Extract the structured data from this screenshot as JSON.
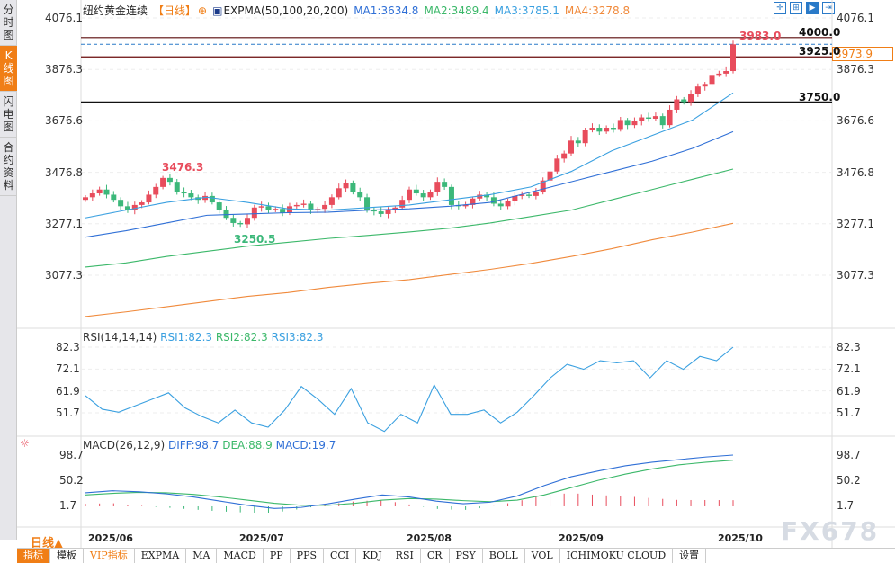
{
  "sidebar": {
    "tabs": [
      "分时图",
      "K线图",
      "闪电图",
      "合约资料"
    ],
    "active": 1
  },
  "header": {
    "instrument": "纽约黄金连续",
    "period": "【日线】",
    "indicator": "EXPMA(50,100,20,200)",
    "ma1": "MA1:3634.8",
    "ma2": "MA2:3489.4",
    "ma3": "MA3:3785.1",
    "ma4": "MA4:3278.8"
  },
  "toolbar_icons": [
    "crosshair-icon",
    "fit-range-icon",
    "play-icon",
    "goto-end-icon"
  ],
  "price_axis": [
    "4076.1",
    "3876.3",
    "3676.6",
    "3476.8",
    "3277.1",
    "3077.3"
  ],
  "current_price": "3973.9",
  "hlines": [
    {
      "label": "4000.0",
      "value": 4000,
      "color": "#5a0a0a"
    },
    {
      "label": "3925.0",
      "value": 3925,
      "color": "#6a0a0a"
    },
    {
      "label": "3750.0",
      "value": 3750,
      "color": "#111111"
    }
  ],
  "annotations": {
    "high": "3983.0",
    "peak": "3476.3",
    "low": "3250.5"
  },
  "rsi": {
    "title": "RSI(14,14,14)",
    "rsi1": "RSI1:82.3",
    "rsi2": "RSI2:82.3",
    "rsi3": "RSI3:82.3",
    "axis": [
      "82.3",
      "72.1",
      "61.9",
      "51.7"
    ]
  },
  "macd": {
    "title": "MACD(26,12,9)",
    "diff": "DIFF:98.7",
    "dea": "DEA:88.9",
    "macd": "MACD:19.7",
    "axis": [
      "98.7",
      "50.2",
      "1.7"
    ]
  },
  "period_button": "日线▲",
  "months": [
    "2025/06",
    "2025/07",
    "2025/08",
    "2025/09",
    "2025/10"
  ],
  "watermark": "FX678",
  "bottom_tabs": [
    "指标",
    "模板",
    "VIP指标",
    "EXPMA",
    "MA",
    "MACD",
    "PP",
    "PPS",
    "CCI",
    "KDJ",
    "RSI",
    "CR",
    "PSY",
    "BOLL",
    "VOL",
    "ICHIMOKU CLOUD",
    "设置"
  ],
  "colors": {
    "up": "#e84c5c",
    "down": "#3cb87a",
    "ma1": "#2f6fd6",
    "ma2": "#3cb86a",
    "ma3": "#3aa0e0",
    "ma4": "#f08a3c",
    "accent": "#f07e16"
  },
  "chart_data": {
    "type": "candlestick",
    "closes": [
      3380,
      3395,
      3410,
      3390,
      3370,
      3345,
      3330,
      3350,
      3360,
      3390,
      3420,
      3455,
      3440,
      3400,
      3395,
      3380,
      3370,
      3385,
      3360,
      3330,
      3300,
      3280,
      3275,
      3300,
      3340,
      3345,
      3330,
      3335,
      3320,
      3345,
      3350,
      3355,
      3330,
      3335,
      3350,
      3380,
      3415,
      3435,
      3400,
      3380,
      3330,
      3325,
      3315,
      3330,
      3340,
      3370,
      3410,
      3395,
      3380,
      3400,
      3440,
      3420,
      3350,
      3345,
      3350,
      3375,
      3390,
      3380,
      3355,
      3345,
      3365,
      3385,
      3390,
      3385,
      3400,
      3445,
      3480,
      3530,
      3550,
      3600,
      3590,
      3640,
      3650,
      3635,
      3650,
      3645,
      3680,
      3660,
      3675,
      3690,
      3685,
      3695,
      3660,
      3720,
      3760,
      3750,
      3780,
      3810,
      3820,
      3855,
      3860,
      3870,
      3973.9
    ],
    "expma": {
      "ma3": [
        3300,
        3330,
        3360,
        3380,
        3360,
        3335,
        3330,
        3340,
        3350,
        3370,
        3390,
        3420,
        3480,
        3560,
        3620,
        3680,
        3785.1
      ],
      "ma1": [
        3225,
        3250,
        3280,
        3310,
        3315,
        3320,
        3322,
        3330,
        3335,
        3345,
        3360,
        3400,
        3440,
        3480,
        3520,
        3570,
        3634.8
      ],
      "ma2": [
        3109,
        3125,
        3150,
        3170,
        3190,
        3205,
        3220,
        3232,
        3245,
        3260,
        3280,
        3305,
        3330,
        3370,
        3410,
        3450,
        3489.4
      ],
      "ma4": [
        2917,
        2935,
        2955,
        2975,
        2995,
        3010,
        3030,
        3046,
        3060,
        3080,
        3100,
        3123,
        3150,
        3180,
        3215,
        3245,
        3278.8
      ]
    },
    "rsi": [
      59.7,
      53.4,
      52,
      55,
      58,
      61,
      54,
      50,
      47,
      53,
      47,
      45,
      53,
      64,
      58,
      51,
      63,
      47,
      43,
      51,
      47,
      64.7,
      51,
      51,
      53,
      47,
      52,
      59.7,
      68,
      74.3,
      72,
      76,
      75,
      76,
      68,
      76,
      72,
      78,
      76,
      82.3
    ],
    "dif": [
      26,
      30,
      28,
      24,
      18,
      10,
      2,
      -4,
      -2,
      5,
      14,
      22,
      18,
      10,
      5,
      8,
      20,
      40,
      57,
      68,
      78,
      85,
      90,
      95,
      98.7
    ],
    "dea": [
      22,
      25,
      27,
      26,
      23,
      18,
      12,
      6,
      2,
      2,
      6,
      12,
      15,
      14,
      11,
      9,
      12,
      22,
      36,
      50,
      62,
      72,
      80,
      85,
      88.9
    ]
  }
}
